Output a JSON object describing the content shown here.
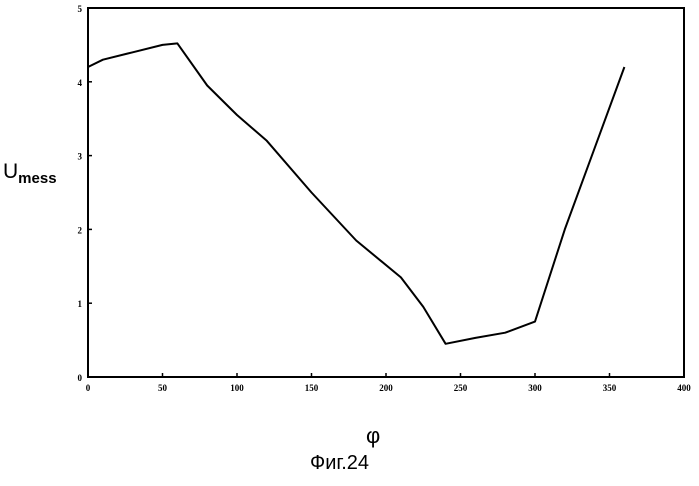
{
  "chart_data": {
    "type": "line",
    "title": "",
    "ylabel_main": "U",
    "ylabel_sub": "mess",
    "xlabel": "φ",
    "caption": "Фиг.24",
    "xlim": [
      0,
      400
    ],
    "ylim": [
      0,
      5
    ],
    "xticks": [
      0,
      50,
      100,
      150,
      200,
      250,
      300,
      350,
      400
    ],
    "yticks": [
      0,
      1,
      2,
      3,
      4,
      5
    ],
    "grid": false,
    "series": [
      {
        "x": [
          0,
          10,
          30,
          50,
          60,
          80,
          100,
          120,
          150,
          180,
          210,
          225,
          240,
          260,
          280,
          300,
          320,
          340,
          360
        ],
        "y": [
          4.2,
          4.3,
          4.4,
          4.5,
          4.52,
          3.95,
          3.55,
          3.2,
          2.5,
          1.85,
          1.35,
          0.95,
          0.45,
          0.53,
          0.6,
          0.75,
          2.0,
          3.1,
          4.2
        ]
      }
    ]
  }
}
